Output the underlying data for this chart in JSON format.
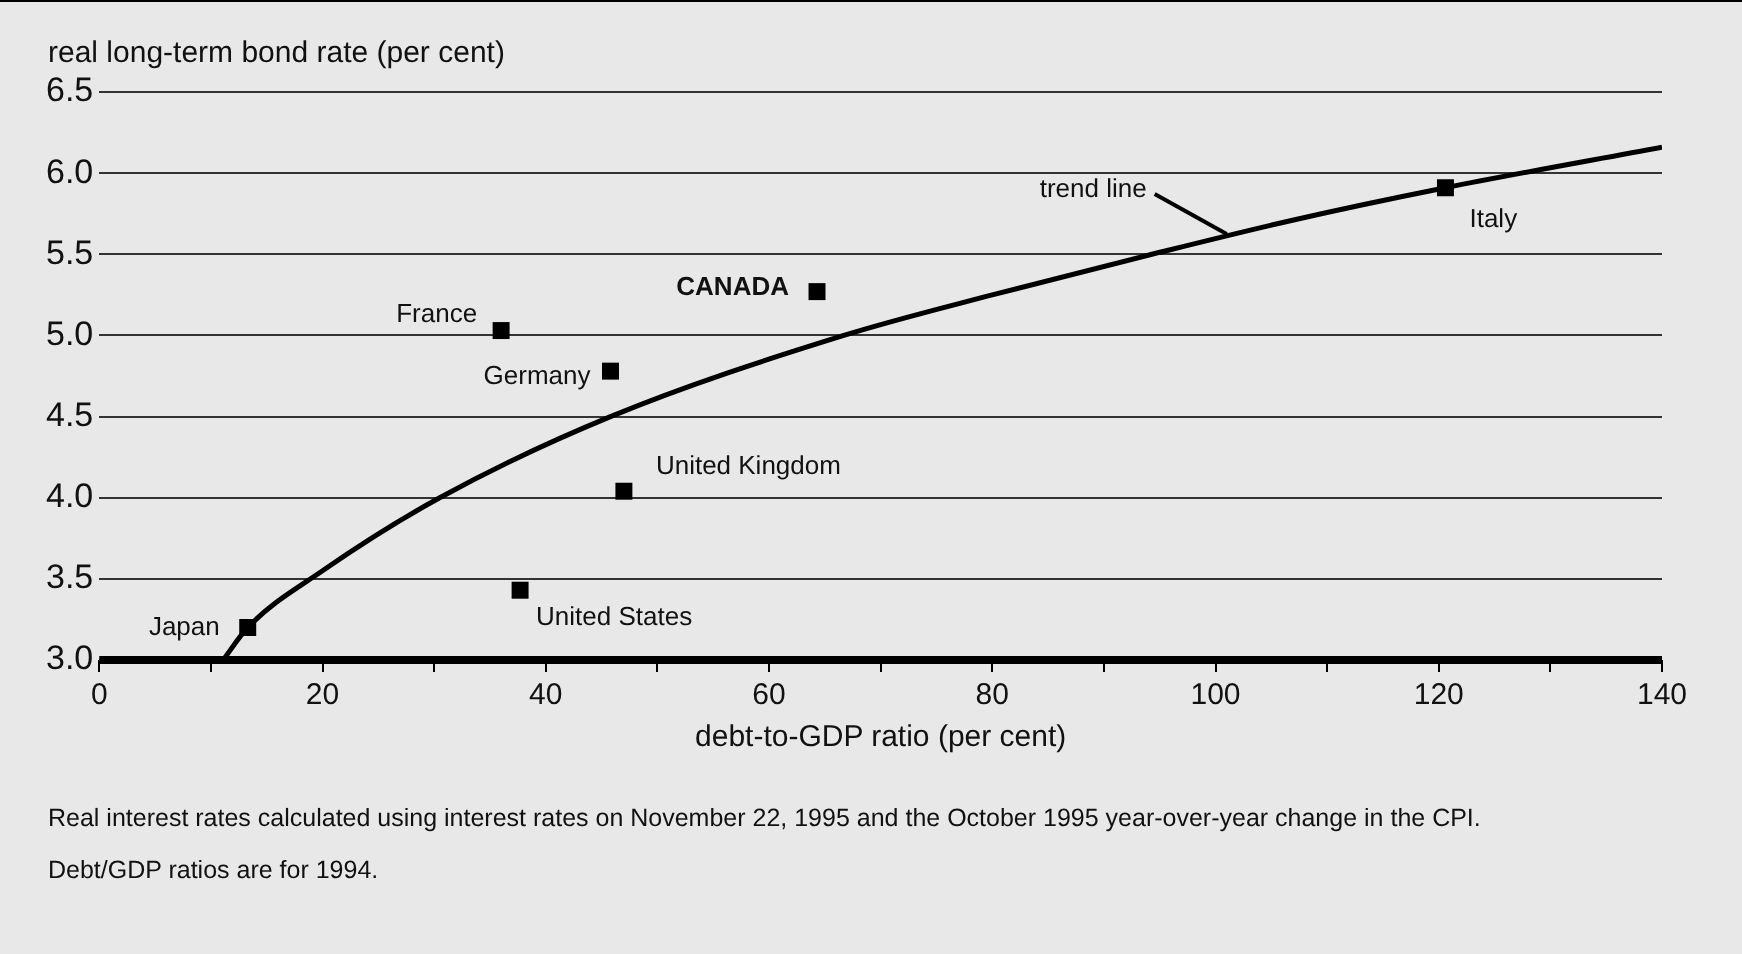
{
  "chart_data": {
    "type": "scatter",
    "ylabel": "real long-term bond rate (per cent)",
    "xlabel": "debt-to-GDP ratio (per cent)",
    "xlim": [
      0,
      140
    ],
    "ylim": [
      3.0,
      6.5
    ],
    "xticks": [
      0,
      {
        "value": 10,
        "label": null
      },
      20,
      {
        "value": 30,
        "label": null
      },
      40,
      {
        "value": 50,
        "label": null
      },
      60,
      {
        "value": 70,
        "label": null
      },
      80,
      {
        "value": 90,
        "label": null
      },
      100,
      {
        "value": 110,
        "label": null
      },
      120,
      {
        "value": 130,
        "label": null
      },
      140
    ],
    "yticks": [
      {
        "value": 3,
        "label": "3.0"
      },
      3.5,
      {
        "value": 4,
        "label": "4.0"
      },
      4.5,
      {
        "value": 5,
        "label": "5.0"
      },
      5.5,
      {
        "value": 6,
        "label": "6.0"
      },
      6.5
    ],
    "grid": "y",
    "legend": false,
    "marker": "square",
    "series": [
      {
        "name": "Japan",
        "color": "#000000",
        "x": [
          13.3
        ],
        "values": [
          3.2
        ]
      },
      {
        "name": "France",
        "color": "#000000",
        "x": [
          36.0
        ],
        "values": [
          5.03
        ]
      },
      {
        "name": "Germany",
        "color": "#000000",
        "x": [
          45.8
        ],
        "values": [
          4.78
        ]
      },
      {
        "name": "CANADA",
        "color": "#000000",
        "x": [
          64.3
        ],
        "values": [
          5.27
        ]
      },
      {
        "name": "United Kingdom",
        "color": "#000000",
        "x": [
          47.0
        ],
        "values": [
          4.04
        ]
      },
      {
        "name": "United States",
        "color": "#000000",
        "x": [
          37.7
        ],
        "values": [
          3.43
        ]
      },
      {
        "name": "Italy",
        "color": "#000000",
        "x": [
          120.6
        ],
        "values": [
          5.91
        ]
      },
      {
        "type": "line",
        "color": "#000000",
        "marker": "none",
        "x": [
          11.1,
          13.3,
          20,
          30.5,
          45.8,
          66.7,
          80,
          94.3,
          106.9,
          120.6,
          140
        ],
        "values": [
          3.0,
          3.2,
          3.55,
          4.0,
          4.5,
          5.0,
          5.25,
          5.5,
          5.71,
          5.91,
          6.16
        ]
      }
    ],
    "annotations": [
      {
        "text": "trend line",
        "x": 101,
        "y": 5.6
      },
      "Real interest rates calculated using interest rates on November 22, 1995 and the October 1995 year-over-year change in the CPI.",
      "Debt/GDP ratios are for 1994."
    ]
  }
}
